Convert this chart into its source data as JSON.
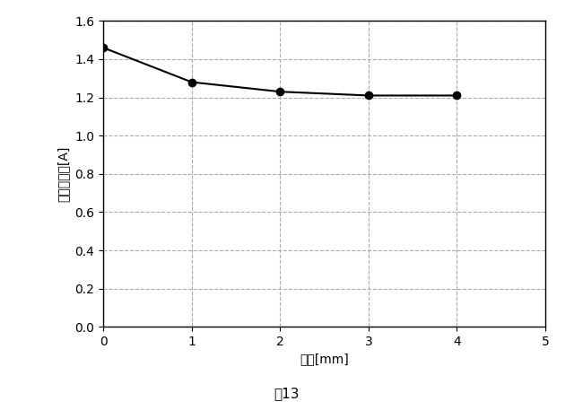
{
  "x": [
    0,
    1,
    2,
    3,
    4
  ],
  "y": [
    1.46,
    1.28,
    1.23,
    1.21,
    1.21
  ],
  "xlabel": "幅　[mm]",
  "ylabel_chars": [
    "最",
    "大",
    "電",
    "流",
    "値",
    "[A]"
  ],
  "caption": "図13",
  "xlim": [
    0,
    5
  ],
  "ylim": [
    0.0,
    1.6
  ],
  "xticks": [
    0,
    1,
    2,
    3,
    4,
    5
  ],
  "yticks": [
    0.0,
    0.2,
    0.4,
    0.6,
    0.8,
    1.0,
    1.2,
    1.4,
    1.6
  ],
  "line_color": "#000000",
  "marker": "o",
  "marker_size": 6,
  "line_width": 1.5,
  "grid_color": "#aaaaaa",
  "grid_style": "--",
  "bg_color": "#ffffff",
  "fig_bg_color": "#ffffff",
  "axis_fontsize": 10,
  "tick_fontsize": 10,
  "caption_fontsize": 11
}
